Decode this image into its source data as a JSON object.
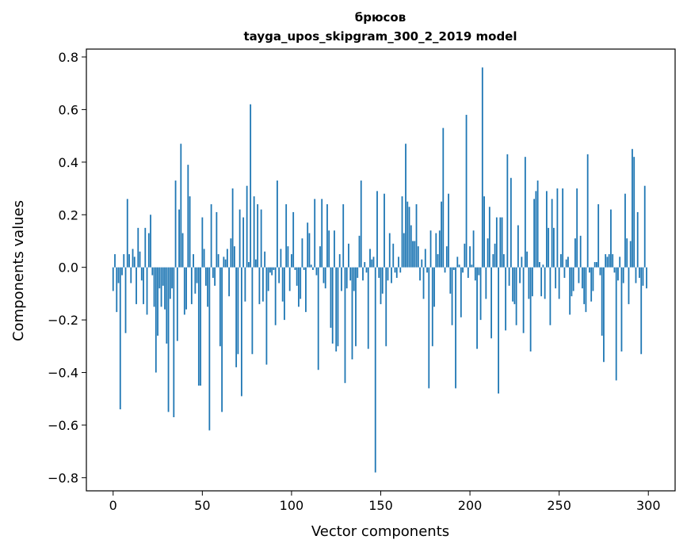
{
  "chart_data": {
    "type": "bar",
    "title": "брюсов",
    "subtitle": "tayga_upos_skipgram_300_2_2019 model",
    "xlabel": "Vector components",
    "ylabel": "Components values",
    "xlim": [
      -15,
      315
    ],
    "ylim": [
      -0.85,
      0.83
    ],
    "xticks": [
      0,
      50,
      100,
      150,
      200,
      250,
      300
    ],
    "xtick_labels": [
      "0",
      "50",
      "100",
      "150",
      "200",
      "250",
      "300"
    ],
    "yticks": [
      -0.8,
      -0.6,
      -0.4,
      -0.2,
      0.0,
      0.2,
      0.4,
      0.6,
      0.8
    ],
    "ytick_labels": [
      "−0.8",
      "−0.6",
      "−0.4",
      "−0.2",
      "0.0",
      "0.2",
      "0.4",
      "0.6",
      "0.8"
    ],
    "grid": false,
    "bar_color": "#1f77b4",
    "values": [
      -0.09,
      0.05,
      -0.17,
      -0.06,
      -0.54,
      -0.03,
      0.05,
      -0.25,
      0.26,
      0.05,
      -0.06,
      0.07,
      0.04,
      -0.14,
      0.15,
      0.06,
      -0.05,
      -0.14,
      0.15,
      -0.18,
      0.13,
      0.2,
      -0.03,
      -0.15,
      -0.4,
      -0.26,
      -0.08,
      -0.15,
      -0.07,
      -0.16,
      -0.29,
      -0.55,
      -0.12,
      -0.08,
      -0.57,
      0.33,
      -0.28,
      0.22,
      0.47,
      0.13,
      -0.18,
      -0.16,
      0.39,
      0.27,
      -0.14,
      0.05,
      -0.1,
      -0.06,
      -0.45,
      -0.45,
      0.19,
      0.07,
      -0.07,
      -0.15,
      -0.62,
      0.24,
      -0.04,
      -0.07,
      0.21,
      0.05,
      -0.3,
      -0.55,
      0.04,
      0.03,
      0.07,
      -0.11,
      0.11,
      0.3,
      0.08,
      -0.38,
      -0.33,
      0.22,
      -0.49,
      0.19,
      -0.13,
      0.31,
      0.02,
      0.62,
      -0.33,
      0.27,
      0.03,
      0.24,
      -0.14,
      0.22,
      -0.13,
      0.06,
      -0.37,
      -0.09,
      -0.02,
      -0.03,
      -0.01,
      -0.22,
      0.33,
      -0.06,
      0.07,
      -0.13,
      -0.2,
      0.24,
      0.08,
      -0.09,
      0.05,
      0.21,
      -0.01,
      -0.07,
      -0.15,
      -0.12,
      0.11,
      -0.01,
      -0.17,
      0.17,
      0.13,
      0.01,
      -0.01,
      0.26,
      -0.03,
      -0.39,
      0.08,
      0.26,
      -0.06,
      -0.08,
      0.24,
      0.14,
      -0.23,
      -0.29,
      0.14,
      -0.32,
      -0.3,
      0.05,
      -0.09,
      0.24,
      -0.44,
      -0.08,
      0.09,
      -0.05,
      -0.35,
      -0.09,
      -0.3,
      -0.04,
      0.12,
      0.33,
      -0.05,
      0.02,
      -0.02,
      -0.31,
      0.07,
      0.03,
      0.04,
      -0.78,
      0.29,
      -0.04,
      -0.14,
      -0.1,
      0.28,
      -0.3,
      -0.05,
      0.13,
      -0.06,
      0.09,
      -0.02,
      -0.04,
      0.04,
      -0.02,
      0.27,
      0.13,
      0.47,
      0.25,
      0.23,
      0.16,
      0.1,
      0.1,
      0.24,
      0.08,
      -0.05,
      0.03,
      -0.12,
      0.07,
      -0.02,
      -0.46,
      0.14,
      -0.3,
      -0.15,
      0.13,
      0.05,
      0.14,
      0.25,
      0.53,
      -0.02,
      0.08,
      0.28,
      -0.1,
      -0.22,
      -0.01,
      -0.46,
      0.04,
      0.01,
      -0.19,
      -0.02,
      0.09,
      0.58,
      -0.04,
      0.08,
      0.01,
      0.14,
      -0.05,
      -0.31,
      -0.03,
      -0.2,
      0.76,
      0.27,
      -0.12,
      0.11,
      0.23,
      -0.27,
      0.05,
      0.09,
      0.19,
      -0.48,
      0.19,
      0.19,
      0.05,
      -0.24,
      0.43,
      -0.07,
      0.34,
      -0.13,
      -0.14,
      -0.22,
      0.16,
      -0.06,
      0.04,
      -0.25,
      0.42,
      0.06,
      -0.12,
      -0.32,
      -0.11,
      0.26,
      0.29,
      0.33,
      0.02,
      -0.11,
      0.01,
      -0.12,
      0.29,
      0.15,
      -0.22,
      0.26,
      0.15,
      -0.08,
      0.3,
      -0.12,
      0.05,
      0.3,
      -0.04,
      0.03,
      0.04,
      -0.18,
      -0.11,
      -0.09,
      0.11,
      0.3,
      -0.06,
      0.12,
      -0.08,
      -0.14,
      -0.17,
      0.43,
      -0.02,
      -0.13,
      -0.09,
      0.02,
      0.02,
      0.24,
      -0.03,
      -0.26,
      -0.36,
      0.05,
      0.04,
      0.05,
      0.22,
      0.05,
      -0.02,
      -0.43,
      -0.05,
      0.04,
      -0.32,
      -0.06,
      0.28,
      0.11,
      -0.14,
      0.1,
      0.45,
      0.42,
      -0.06,
      0.21,
      -0.04,
      -0.33,
      -0.07,
      0.31,
      -0.08
    ]
  }
}
